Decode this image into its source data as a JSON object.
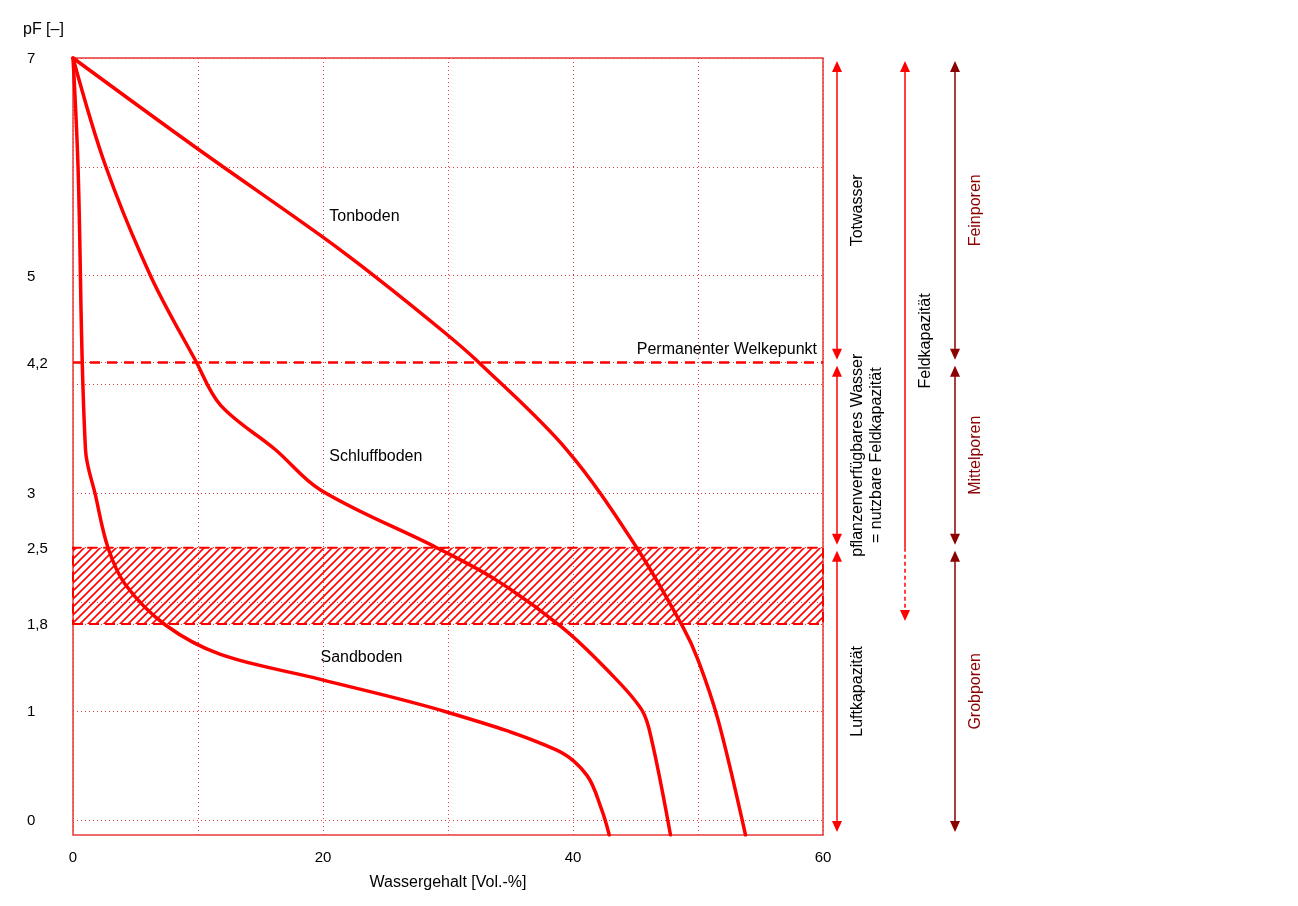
{
  "chart_data": {
    "type": "line",
    "xlabel": "Wassergehalt [Vol.-%]",
    "ylabel": "pF [–]",
    "xlim": [
      0,
      60
    ],
    "ylim": [
      -0.14,
      7
    ],
    "xticks": [
      0,
      {
        "value": 10,
        "label": null
      },
      20,
      {
        "value": 30,
        "label": null
      },
      40,
      {
        "value": 50,
        "label": null
      },
      60
    ],
    "yticks": [
      0,
      1,
      {
        "value": 1.8,
        "label": "1,8"
      },
      {
        "value": 2,
        "label": null
      },
      {
        "value": 2.5,
        "label": "2,5"
      },
      3,
      {
        "value": 4,
        "label": null
      },
      {
        "value": 4.2,
        "label": "4,2"
      },
      5,
      {
        "value": 6,
        "label": null
      },
      7
    ],
    "grid": true,
    "legend": false,
    "marker": "none",
    "line_style": "solid",
    "series": [
      {
        "name": "Tonboden",
        "color": "#ff0000",
        "x": [
          0,
          9.8,
          19.8,
          24.3,
          29.7,
          32.3,
          39.5,
          45.1,
          48.8,
          50.0,
          51.6,
          53.8
        ],
        "values": [
          7,
          6.18,
          5.37,
          4.98,
          4.48,
          4.22,
          3.4,
          2.5,
          1.77,
          1.47,
          0.92,
          -0.14
        ]
      },
      {
        "name": "Schluffboden",
        "color": "#ff0000",
        "x": [
          0,
          2.6,
          6.2,
          9.8,
          11.8,
          16.2,
          19.8,
          29.1,
          33.9,
          39.1,
          42.7,
          45.5,
          46.3,
          47.8
        ],
        "values": [
          7,
          6.01,
          5.0,
          4.22,
          3.81,
          3.4,
          3.03,
          2.5,
          2.2,
          1.77,
          1.38,
          1.01,
          0.73,
          -0.14
        ]
      },
      {
        "name": "Sandboden",
        "color": "#ff0000",
        "x": [
          0,
          0.4,
          1.0,
          1.8,
          2.8,
          4.2,
          7.4,
          11.8,
          19.8,
          29.9,
          38.7,
          41.1,
          42.3,
          42.9
        ],
        "values": [
          7,
          6.01,
          3.4,
          2.98,
          2.5,
          2.16,
          1.79,
          1.52,
          1.29,
          0.99,
          0.64,
          0.41,
          0.09,
          -0.14
        ]
      }
    ],
    "ref_lines": [
      {
        "axis": "y",
        "value": 4.2,
        "label": "Permanenter Welkepunkt",
        "color": "#ff0000",
        "line_style": "dashed"
      }
    ],
    "bands": [
      {
        "axis": "y",
        "from": 1.8,
        "to": 2.5,
        "color": "#ff0000"
      }
    ],
    "annotations": [
      "Totwasser",
      "pflanzenverfügbares Wasser\n= nutzbare Feldkapazität",
      "Luftkapazität",
      "Feldkapazität",
      "Feinporen",
      "Mittelporen",
      "Grobporen"
    ]
  }
}
